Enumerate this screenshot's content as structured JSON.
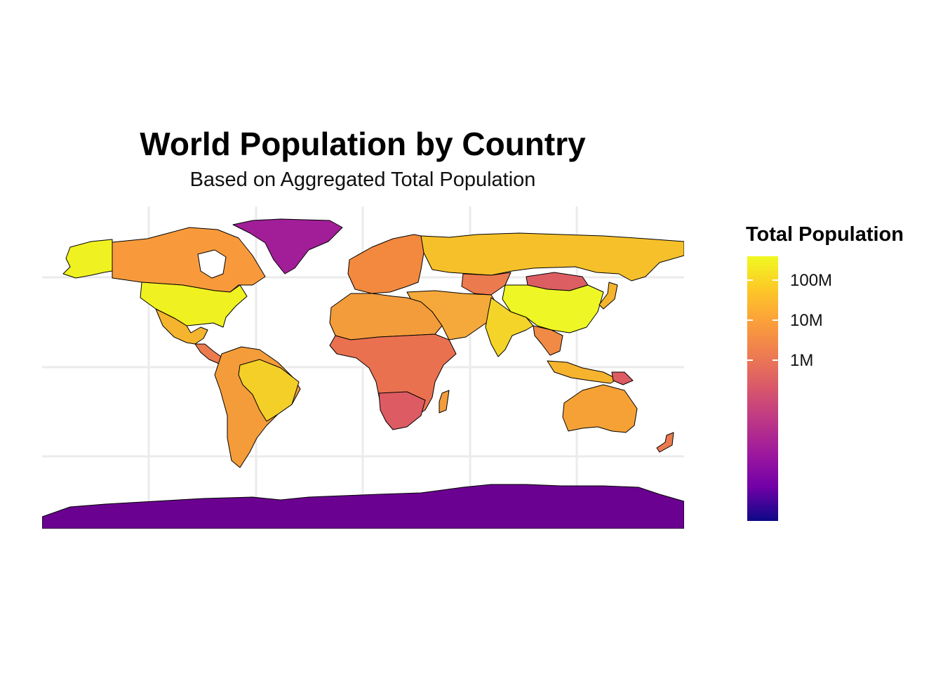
{
  "title": "World Population by Country",
  "subtitle": "Based on Aggregated Total Population",
  "legend": {
    "title": "Total Population",
    "scale": "log",
    "palette": "plasma",
    "ticks": [
      {
        "label": "100M",
        "value": 100000000
      },
      {
        "label": "10M",
        "value": 10000000
      },
      {
        "label": "1M",
        "value": 1000000
      }
    ]
  },
  "map": {
    "projection": "equirectangular",
    "grid": true,
    "colors": {
      "ocean": "#ffffff",
      "grid": "#ebebeb",
      "border": "#000000"
    },
    "regions": [
      {
        "name": "Canada",
        "fill": "#f89a3b"
      },
      {
        "name": "United States",
        "fill": "#f0f121"
      },
      {
        "name": "Alaska",
        "fill": "#f0f121"
      },
      {
        "name": "Mexico",
        "fill": "#f5b42e"
      },
      {
        "name": "Central America",
        "fill": "#ec7a4f"
      },
      {
        "name": "Greenland",
        "fill": "#a21e98"
      },
      {
        "name": "Brazil",
        "fill": "#f4cf28"
      },
      {
        "name": "South America",
        "fill": "#f49c3a"
      },
      {
        "name": "Europe",
        "fill": "#f2893e"
      },
      {
        "name": "Russia",
        "fill": "#f6c02a"
      },
      {
        "name": "Kazakhstan",
        "fill": "#ec7a4f"
      },
      {
        "name": "Mongolia",
        "fill": "#dc5e62"
      },
      {
        "name": "China",
        "fill": "#eef625"
      },
      {
        "name": "India",
        "fill": "#f4d428"
      },
      {
        "name": "Middle East",
        "fill": "#f5a93a"
      },
      {
        "name": "North Africa",
        "fill": "#f39c3c"
      },
      {
        "name": "Sub-Saharan Africa",
        "fill": "#ea7150"
      },
      {
        "name": "Southern Africa",
        "fill": "#dd5b62"
      },
      {
        "name": "Madagascar",
        "fill": "#f39c3c"
      },
      {
        "name": "Southeast Asia",
        "fill": "#f18a44"
      },
      {
        "name": "Japan",
        "fill": "#f5b42e"
      },
      {
        "name": "Indonesia",
        "fill": "#f6b32e"
      },
      {
        "name": "Australia",
        "fill": "#f6a135"
      },
      {
        "name": "New Zealand",
        "fill": "#ec7a4f"
      },
      {
        "name": "Papua New Guinea",
        "fill": "#dd5b62"
      },
      {
        "name": "Antarctica",
        "fill": "#6a0190"
      }
    ]
  }
}
